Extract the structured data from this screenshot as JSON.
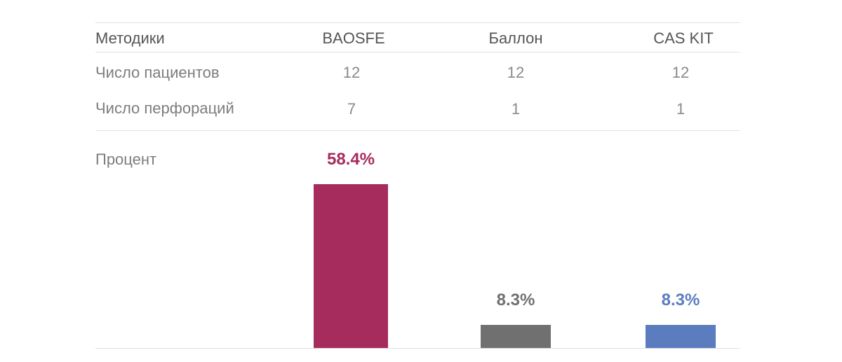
{
  "table": {
    "header": [
      "Методики",
      "BAOSFE",
      "Баллон",
      "CAS KIT"
    ],
    "rows": [
      {
        "label": "Число пациентов",
        "values": [
          "12",
          "12",
          "12"
        ]
      },
      {
        "label": "Число перфораций",
        "values": [
          "7",
          "1",
          "1"
        ]
      }
    ],
    "percent_row_label": "Процент"
  },
  "chart_data": {
    "type": "bar",
    "categories": [
      "BAOSFE",
      "Баллон",
      "CAS KIT"
    ],
    "values": [
      58.4,
      8.3,
      8.3
    ],
    "value_labels": [
      "58.4%",
      "8.3%",
      "8.3%"
    ],
    "colors": [
      "#a72c5e",
      "#707070",
      "#5b7dbf"
    ],
    "label_colors": [
      "#a72c5e",
      "#707070",
      "#5b7dbf"
    ],
    "ylim": [
      0,
      58.4
    ],
    "xlabel": "",
    "ylabel": "",
    "grid": false,
    "legend": "none"
  }
}
